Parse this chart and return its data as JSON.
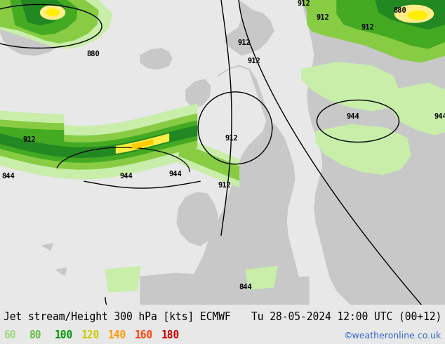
{
  "title_left": "Jet stream/Height 300 hPa [kts] ECMWF",
  "title_right": "Tu 28-05-2024 12:00 UTC (00+12)",
  "credit": "©weatheronline.co.uk",
  "legend_values": [
    60,
    80,
    100,
    120,
    140,
    160,
    180
  ],
  "legend_colors": [
    "#a0d880",
    "#66bb44",
    "#009900",
    "#cccc00",
    "#ff9900",
    "#ff4400",
    "#cc0000"
  ],
  "bg_color": "#e8e8e8",
  "title_fontsize": 10.5,
  "legend_fontsize": 10.5,
  "credit_fontsize": 9,
  "figsize": [
    6.34,
    4.9
  ],
  "dpi": 100,
  "map_region": {
    "lon_min": -80,
    "lon_max": 60,
    "lat_min": 25,
    "lat_max": 80
  },
  "gray_land_color": "#c8c8c8",
  "ocean_color": "#e8e8e8",
  "green_light": "#c8eeaa",
  "green_med": "#88cc44",
  "green_dark": "#228822",
  "yellow_core": "#ffee44",
  "contour_color": "black",
  "contour_lw": 1.0
}
